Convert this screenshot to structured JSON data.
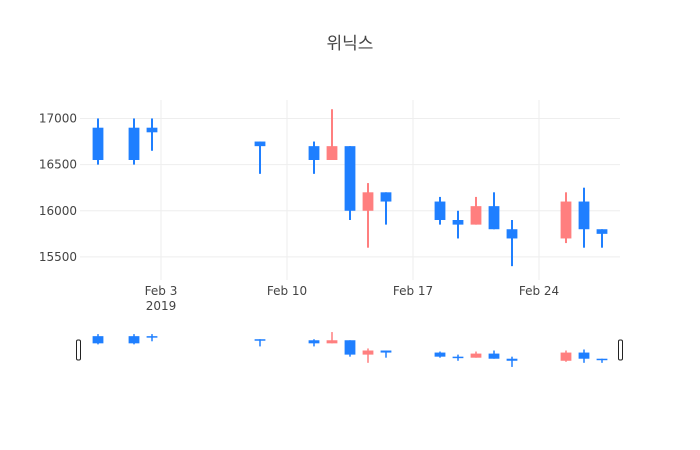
{
  "chart_data": {
    "type": "candlestick",
    "title": "위닉스",
    "colors": {
      "increasing": "#ff7f7f",
      "decreasing": "#1f7fff",
      "grid": "#eeeeee"
    },
    "x_axis": {
      "type": "date",
      "range": [
        "2019-01-29T12:00",
        "2019-02-28T12:00"
      ],
      "ticks": [
        {
          "date": "2019-02-03",
          "label": "Feb 3",
          "sublabel": "2019"
        },
        {
          "date": "2019-02-10",
          "label": "Feb 10",
          "sublabel": ""
        },
        {
          "date": "2019-02-17",
          "label": "Feb 17",
          "sublabel": ""
        },
        {
          "date": "2019-02-24",
          "label": "Feb 24",
          "sublabel": ""
        }
      ]
    },
    "y_axis": {
      "range": [
        15250,
        17200
      ],
      "ticks": [
        {
          "value": 15500,
          "label": "15500"
        },
        {
          "value": 16000,
          "label": "16000"
        },
        {
          "value": 16500,
          "label": "16500"
        },
        {
          "value": 17000,
          "label": "17000"
        }
      ]
    },
    "rangeslider": {
      "visible": true,
      "y_range": [
        15250,
        17200
      ]
    },
    "candles": [
      {
        "date": "2019-01-30",
        "open": 16900,
        "high": 17000,
        "low": 16500,
        "close": 16550
      },
      {
        "date": "2019-02-01",
        "open": 16900,
        "high": 17000,
        "low": 16500,
        "close": 16550
      },
      {
        "date": "2019-02-02",
        "open": 16900,
        "high": 17000,
        "low": 16650,
        "close": 16850
      },
      {
        "date": "2019-02-08",
        "open": 16750,
        "high": 16750,
        "low": 16400,
        "close": 16700
      },
      {
        "date": "2019-02-11",
        "open": 16700,
        "high": 16750,
        "low": 16400,
        "close": 16550
      },
      {
        "date": "2019-02-12",
        "open": 16550,
        "high": 17100,
        "low": 16550,
        "close": 16700
      },
      {
        "date": "2019-02-13",
        "open": 16700,
        "high": 16700,
        "low": 15900,
        "close": 16000
      },
      {
        "date": "2019-02-14",
        "open": 16000,
        "high": 16300,
        "low": 15600,
        "close": 16200
      },
      {
        "date": "2019-02-15",
        "open": 16200,
        "high": 16200,
        "low": 15850,
        "close": 16100
      },
      {
        "date": "2019-02-18",
        "open": 16100,
        "high": 16150,
        "low": 15850,
        "close": 15900
      },
      {
        "date": "2019-02-19",
        "open": 15900,
        "high": 16000,
        "low": 15700,
        "close": 15850
      },
      {
        "date": "2019-02-20",
        "open": 15850,
        "high": 16150,
        "low": 15850,
        "close": 16050
      },
      {
        "date": "2019-02-21",
        "open": 16050,
        "high": 16200,
        "low": 15800,
        "close": 15800
      },
      {
        "date": "2019-02-22",
        "open": 15800,
        "high": 15900,
        "low": 15400,
        "close": 15700
      },
      {
        "date": "2019-02-25",
        "open": 15700,
        "high": 16200,
        "low": 15650,
        "close": 16100
      },
      {
        "date": "2019-02-26",
        "open": 16100,
        "high": 16250,
        "low": 15600,
        "close": 15800
      },
      {
        "date": "2019-02-27",
        "open": 15800,
        "high": 15800,
        "low": 15600,
        "close": 15750
      }
    ]
  }
}
